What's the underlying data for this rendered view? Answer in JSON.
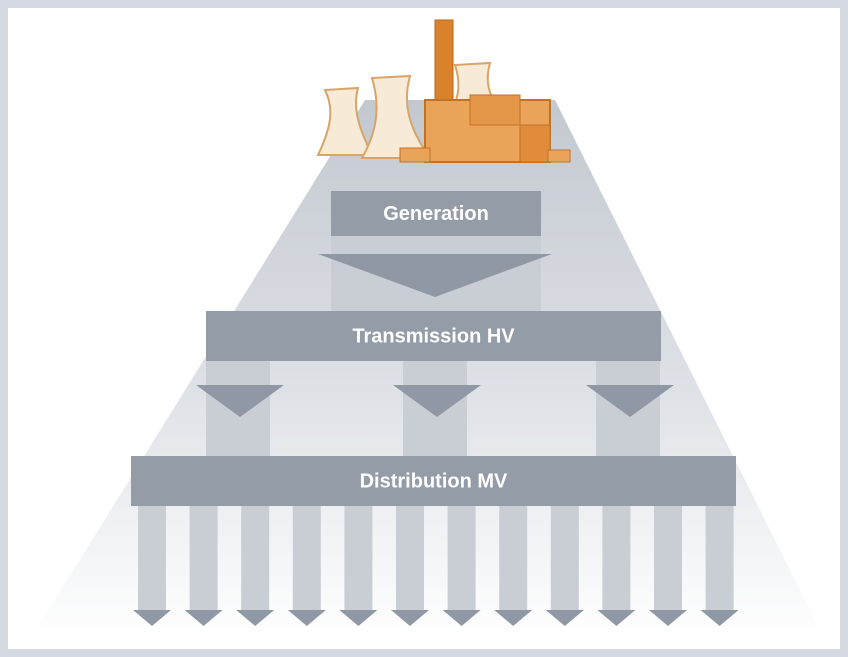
{
  "levels": {
    "generation": "Generation",
    "transmission": "Transmission HV",
    "distribution": "Distribution MV"
  }
}
